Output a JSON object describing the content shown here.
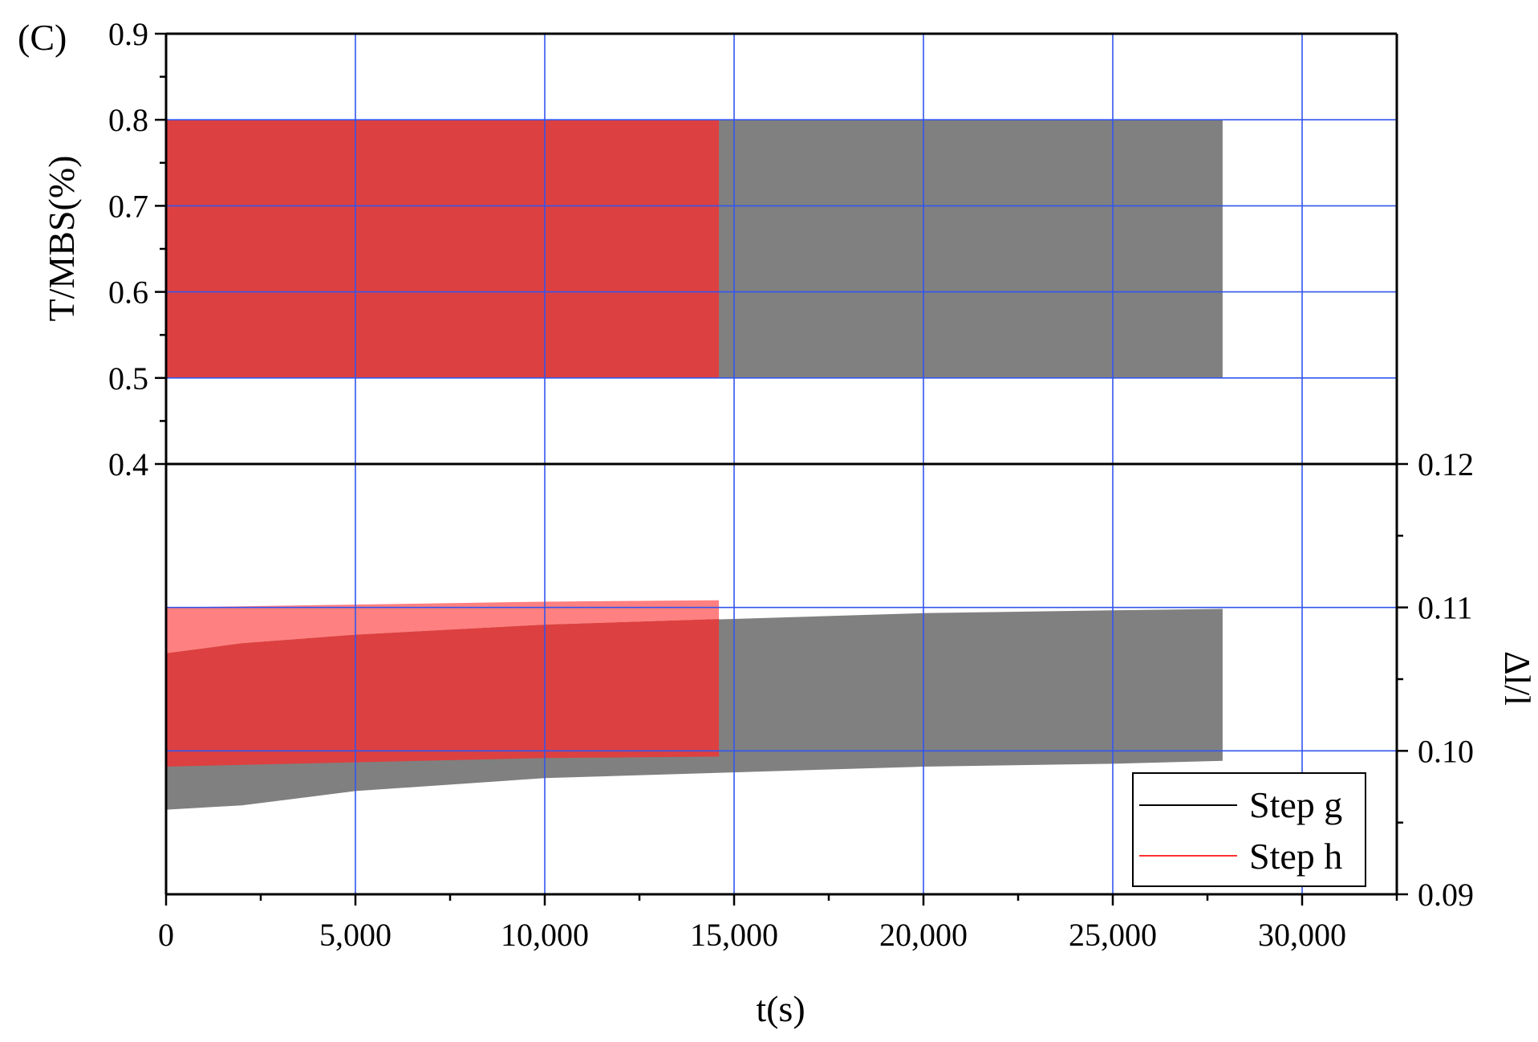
{
  "chart_data": {
    "type": "area",
    "panel_label": "(C)",
    "xlabel": "t(s)",
    "xlim": [
      0,
      32500
    ],
    "x_ticks": [
      0,
      5000,
      10000,
      15000,
      20000,
      25000,
      30000
    ],
    "x_tick_labels": [
      "0",
      "5,000",
      "10,000",
      "15,000",
      "20,000",
      "25,000",
      "30,000"
    ],
    "grid": true,
    "grid_color": "#3355ee",
    "upper_panel": {
      "ylabel": "T/MBS(%)",
      "axis_side": "left",
      "ylim": [
        0.4,
        0.9
      ],
      "y_ticks": [
        0.4,
        0.5,
        0.6,
        0.7,
        0.8,
        0.9
      ],
      "y_tick_labels": [
        "0.4",
        "0.5",
        "0.6",
        "0.7",
        "0.8",
        "0.9"
      ],
      "series": [
        {
          "name": "Step g",
          "color": "#808080",
          "x_end": 27900,
          "band_low": [
            [
              0,
              0.5
            ],
            [
              27900,
              0.5
            ]
          ],
          "band_high": [
            [
              0,
              0.8
            ],
            [
              27900,
              0.8
            ]
          ]
        },
        {
          "name": "Step h",
          "color": "#dd4040",
          "x_end": 14600,
          "band_low": [
            [
              0,
              0.5
            ],
            [
              14600,
              0.5
            ]
          ],
          "band_high": [
            [
              0,
              0.8
            ],
            [
              14600,
              0.8
            ]
          ]
        }
      ]
    },
    "lower_panel": {
      "ylabel": "Δl/l",
      "axis_side": "right",
      "ylim": [
        0.09,
        0.12
      ],
      "y_ticks": [
        0.09,
        0.1,
        0.11,
        0.12
      ],
      "y_tick_labels": [
        "0.09",
        "0.10",
        "0.11",
        "0.12"
      ],
      "series": [
        {
          "name": "Step g",
          "color": "#808080",
          "x_end": 27900,
          "band_low": [
            [
              0,
              0.0959
            ],
            [
              2000,
              0.0962
            ],
            [
              5000,
              0.0972
            ],
            [
              10000,
              0.0981
            ],
            [
              15000,
              0.0985
            ],
            [
              20000,
              0.0989
            ],
            [
              25000,
              0.0991
            ],
            [
              27900,
              0.0993
            ]
          ],
          "band_high": [
            [
              0,
              0.1068
            ],
            [
              2000,
              0.1075
            ],
            [
              5000,
              0.1081
            ],
            [
              10000,
              0.1088
            ],
            [
              15000,
              0.1092
            ],
            [
              20000,
              0.1096
            ],
            [
              25000,
              0.1098
            ],
            [
              27900,
              0.1099
            ]
          ]
        },
        {
          "name": "Step h",
          "color": "#dd4040",
          "x_end": 14600,
          "band_low": [
            [
              0,
              0.0989
            ],
            [
              5000,
              0.0992
            ],
            [
              10000,
              0.0995
            ],
            [
              14600,
              0.0996
            ]
          ],
          "band_high": [
            [
              0,
              0.1068
            ],
            [
              2000,
              0.1075
            ],
            [
              5000,
              0.1081
            ],
            [
              10000,
              0.1088
            ],
            [
              14600,
              0.1092
            ]
          ],
          "band_top": [
            [
              0,
              0.11
            ],
            [
              5000,
              0.1102
            ],
            [
              10000,
              0.1104
            ],
            [
              14600,
              0.1105
            ]
          ],
          "top_color": "#ff8080"
        }
      ]
    },
    "legend": {
      "position": "bottom-right",
      "entries": [
        {
          "label": "Step g",
          "color": "#000000"
        },
        {
          "label": "Step h",
          "color": "#ff3333"
        }
      ]
    }
  }
}
